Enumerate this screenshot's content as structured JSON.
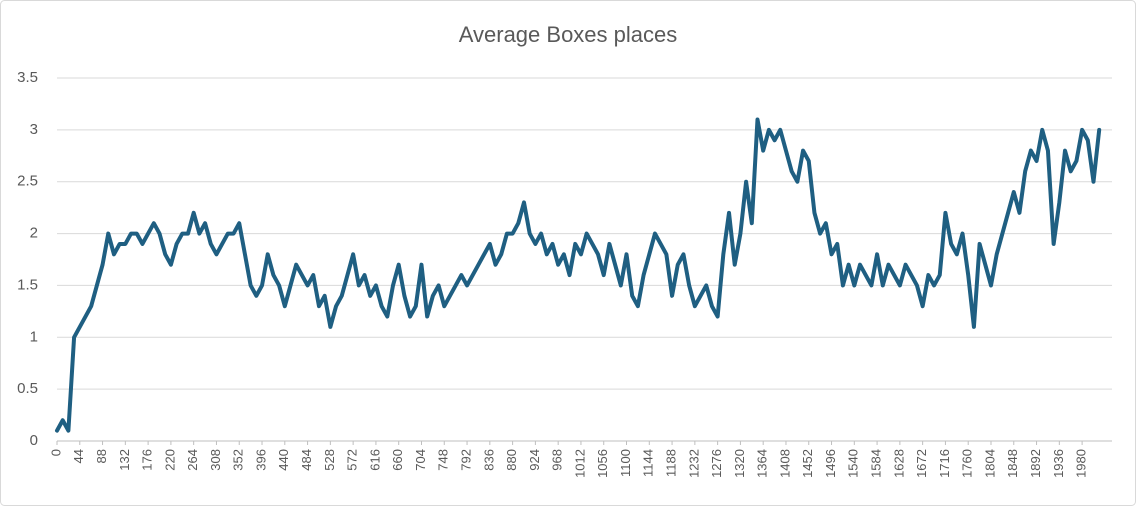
{
  "chart_data": {
    "type": "line",
    "title": "Average Boxes places",
    "x": [
      0,
      11,
      22,
      33,
      44,
      55,
      66,
      77,
      88,
      99,
      110,
      121,
      132,
      143,
      154,
      165,
      176,
      187,
      198,
      209,
      220,
      231,
      242,
      253,
      264,
      275,
      286,
      297,
      308,
      319,
      330,
      341,
      352,
      363,
      374,
      385,
      396,
      407,
      418,
      429,
      440,
      451,
      462,
      473,
      484,
      495,
      506,
      517,
      528,
      539,
      550,
      561,
      572,
      583,
      594,
      605,
      616,
      627,
      638,
      649,
      660,
      671,
      682,
      693,
      704,
      715,
      726,
      737,
      748,
      759,
      770,
      781,
      792,
      803,
      814,
      825,
      836,
      847,
      858,
      869,
      880,
      891,
      902,
      913,
      924,
      935,
      946,
      957,
      968,
      979,
      990,
      1001,
      1012,
      1023,
      1034,
      1045,
      1056,
      1067,
      1078,
      1089,
      1100,
      1111,
      1122,
      1133,
      1144,
      1155,
      1166,
      1177,
      1188,
      1199,
      1210,
      1221,
      1232,
      1243,
      1254,
      1265,
      1276,
      1287,
      1298,
      1309,
      1320,
      1331,
      1342,
      1353,
      1364,
      1375,
      1386,
      1397,
      1408,
      1419,
      1430,
      1441,
      1452,
      1463,
      1474,
      1485,
      1496,
      1507,
      1518,
      1529,
      1540,
      1551,
      1562,
      1573,
      1584,
      1595,
      1606,
      1617,
      1628,
      1639,
      1650,
      1661,
      1672,
      1683,
      1694,
      1705,
      1716,
      1727,
      1738,
      1749,
      1760,
      1771,
      1782,
      1793,
      1804,
      1815,
      1826,
      1837,
      1848,
      1859,
      1870,
      1881,
      1892,
      1903,
      1914,
      1925,
      1936,
      1947,
      1958,
      1969,
      1980,
      1991,
      2002,
      2013
    ],
    "series": [
      {
        "name": "Average Boxes places",
        "color": "#1f5f82",
        "values": [
          0.1,
          0.2,
          0.1,
          1.0,
          1.1,
          1.2,
          1.3,
          1.5,
          1.7,
          2.0,
          1.8,
          1.9,
          1.9,
          2.0,
          2.0,
          1.9,
          2.0,
          2.1,
          2.0,
          1.8,
          1.7,
          1.9,
          2.0,
          2.0,
          2.2,
          2.0,
          2.1,
          1.9,
          1.8,
          1.9,
          2.0,
          2.0,
          2.1,
          1.8,
          1.5,
          1.4,
          1.5,
          1.8,
          1.6,
          1.5,
          1.3,
          1.5,
          1.7,
          1.6,
          1.5,
          1.6,
          1.3,
          1.4,
          1.1,
          1.3,
          1.4,
          1.6,
          1.8,
          1.5,
          1.6,
          1.4,
          1.5,
          1.3,
          1.2,
          1.5,
          1.7,
          1.4,
          1.2,
          1.3,
          1.7,
          1.2,
          1.4,
          1.5,
          1.3,
          1.4,
          1.5,
          1.6,
          1.5,
          1.6,
          1.7,
          1.8,
          1.9,
          1.7,
          1.8,
          2.0,
          2.0,
          2.1,
          2.3,
          2.0,
          1.9,
          2.0,
          1.8,
          1.9,
          1.7,
          1.8,
          1.6,
          1.9,
          1.8,
          2.0,
          1.9,
          1.8,
          1.6,
          1.9,
          1.7,
          1.5,
          1.8,
          1.4,
          1.3,
          1.6,
          1.8,
          2.0,
          1.9,
          1.8,
          1.4,
          1.7,
          1.8,
          1.5,
          1.3,
          1.4,
          1.5,
          1.3,
          1.2,
          1.8,
          2.2,
          1.7,
          2.0,
          2.5,
          2.1,
          3.1,
          2.8,
          3.0,
          2.9,
          3.0,
          2.8,
          2.6,
          2.5,
          2.8,
          2.7,
          2.2,
          2.0,
          2.1,
          1.8,
          1.9,
          1.5,
          1.7,
          1.5,
          1.7,
          1.6,
          1.5,
          1.8,
          1.5,
          1.7,
          1.6,
          1.5,
          1.7,
          1.6,
          1.5,
          1.3,
          1.6,
          1.5,
          1.6,
          2.2,
          1.9,
          1.8,
          2.0,
          1.6,
          1.1,
          1.9,
          1.7,
          1.5,
          1.8,
          2.0,
          2.2,
          2.4,
          2.2,
          2.6,
          2.8,
          2.7,
          3.0,
          2.8,
          1.9,
          2.3,
          2.8,
          2.6,
          2.7,
          3.0,
          2.9,
          2.5,
          3.0
        ]
      }
    ],
    "xlim": [
      0,
      2030
    ],
    "xticks": [
      0,
      44,
      88,
      132,
      176,
      220,
      264,
      308,
      352,
      396,
      440,
      484,
      528,
      572,
      616,
      660,
      704,
      748,
      792,
      836,
      880,
      924,
      968,
      1012,
      1056,
      1100,
      1144,
      1188,
      1232,
      1276,
      1320,
      1364,
      1408,
      1452,
      1496,
      1540,
      1584,
      1628,
      1672,
      1716,
      1760,
      1804,
      1848,
      1892,
      1936,
      1980
    ],
    "ylim": [
      0,
      3.5
    ],
    "yticks": [
      0,
      0.5,
      1,
      1.5,
      2,
      2.5,
      3,
      3.5
    ],
    "grid": true
  }
}
